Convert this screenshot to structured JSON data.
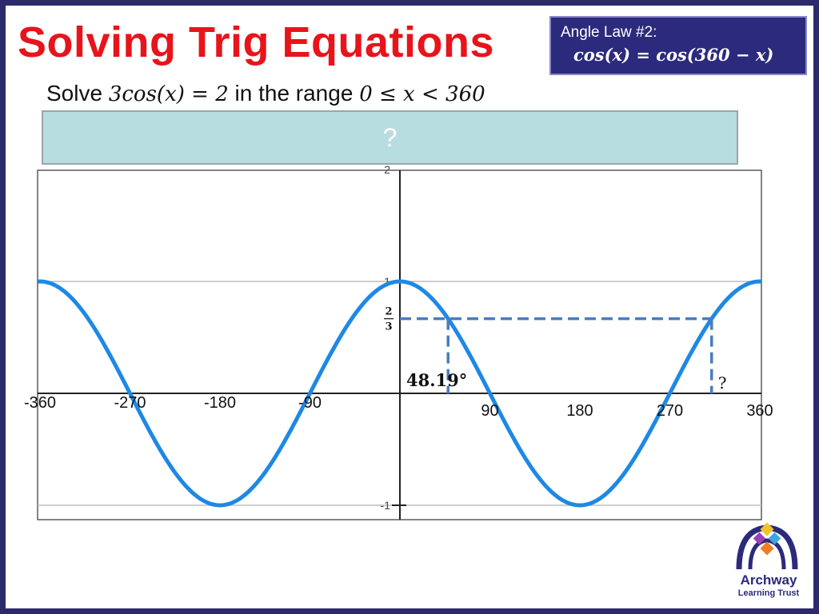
{
  "slide": {
    "title": "Solving Trig Equations",
    "question_prefix": "Solve ",
    "question_equation": "3cos(x) = 2",
    "question_middle": " in the range ",
    "question_range": "0 ≤ x < 360",
    "answer_placeholder": "?"
  },
  "angle_law": {
    "heading": "Angle Law #2:",
    "formula": "cos(x) = cos(360 − x)"
  },
  "logo": {
    "name": "Archway",
    "subtitle": "Learning Trust"
  },
  "colors": {
    "title": "#e8141b",
    "law_box": "#2b2a7c",
    "curve": "#1e88e5",
    "guide": "#4a7cc0",
    "answer_box": "#b8dde0"
  },
  "chart_data": {
    "type": "line",
    "function": "cos(x)",
    "xlim": [
      -360,
      360
    ],
    "ylim": [
      -1,
      2
    ],
    "x_tick_labels": [
      "-360",
      "-270",
      "-180",
      "-90",
      "90",
      "180",
      "270",
      "360"
    ],
    "x_tick_values": [
      -360,
      -270,
      -180,
      -90,
      90,
      180,
      270,
      360
    ],
    "y_tick_labels": [
      "2",
      "1",
      "-1"
    ],
    "y_tick_values": [
      2,
      1,
      -1
    ],
    "gridlines_y": [
      1,
      -1
    ],
    "guide_y": 0.6667,
    "guide_y_label": "2/3",
    "solutions": [
      {
        "x": 48.19,
        "label": "48.19°"
      },
      {
        "x": 311.81,
        "label": "?"
      }
    ]
  }
}
